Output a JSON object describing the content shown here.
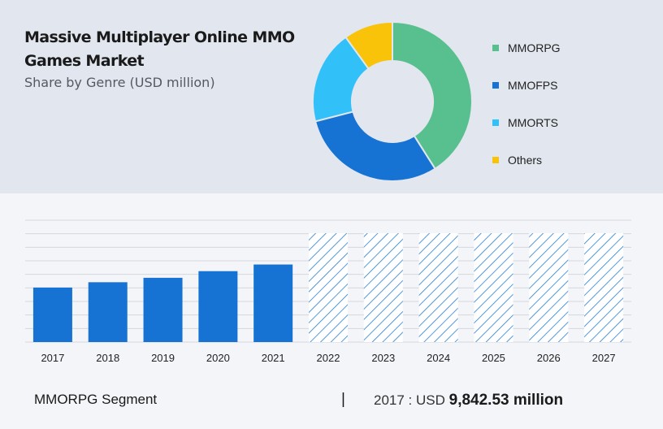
{
  "header": {
    "title": "Massive Multiplayer Online MMO Games Market",
    "subtitle": "Share by Genre (USD million)"
  },
  "footer": {
    "segment_label": "MMORPG Segment",
    "separator": "|",
    "value_prefix": "2017 : USD",
    "value_amount": "9,842.53 million"
  },
  "chart_data": [
    {
      "type": "pie",
      "title": "Share by Genre (USD million)",
      "legend_position": "right",
      "slices": [
        {
          "name": "MMORPG",
          "value": 41,
          "color": "#58c08f"
        },
        {
          "name": "MMOFPS",
          "value": 30,
          "color": "#1673d4"
        },
        {
          "name": "MMORTS",
          "value": 19,
          "color": "#32c0f8"
        },
        {
          "name": "Others",
          "value": 10,
          "color": "#f8c309"
        }
      ]
    },
    {
      "type": "bar",
      "categories": [
        "2017",
        "2018",
        "2019",
        "2020",
        "2021",
        "2022",
        "2023",
        "2024",
        "2025",
        "2026",
        "2027"
      ],
      "values": [
        9842.53,
        10800,
        11600,
        12800,
        14000,
        null,
        null,
        null,
        null,
        null,
        null
      ],
      "forecast": [
        false,
        false,
        false,
        false,
        false,
        true,
        true,
        true,
        true,
        true,
        true
      ],
      "ylim": [
        0,
        22000
      ],
      "grid": true,
      "bar_color": "#1673d4",
      "forecast_color": "#1a78d4",
      "unit": "USD million"
    }
  ]
}
